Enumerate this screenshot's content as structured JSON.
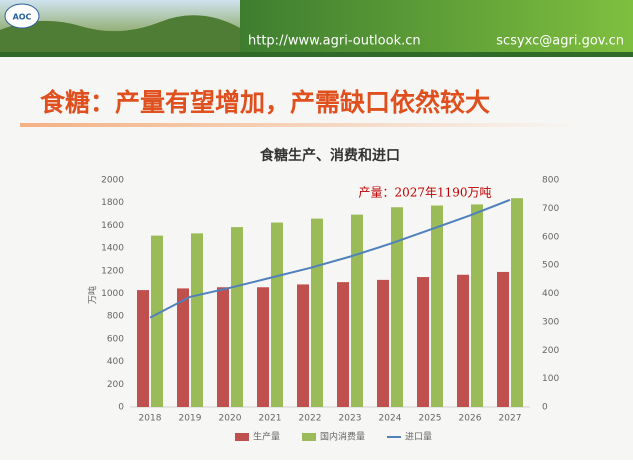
{
  "header": {
    "logo": "AOC",
    "url": "http://www.agri-outlook.cn",
    "email": "scsyxc@agri.gov.cn"
  },
  "slide_title": "食糖：产量有望增加，产需缺口依然较大",
  "chart_data": {
    "type": "bar",
    "title": "食糖生产、消费和进口",
    "annotation": "产量：2027年1190万吨",
    "y_label": "万吨",
    "categories": [
      "2018",
      "2019",
      "2020",
      "2021",
      "2022",
      "2023",
      "2024",
      "2025",
      "2026",
      "2027"
    ],
    "series": [
      {
        "name": "生产量",
        "type": "bar",
        "color": "#c0504d",
        "values": [
          1030,
          1045,
          1055,
          1055,
          1080,
          1100,
          1120,
          1145,
          1165,
          1190
        ]
      },
      {
        "name": "国内消费量",
        "type": "bar",
        "color": "#9bbb59",
        "values": [
          1510,
          1530,
          1585,
          1625,
          1660,
          1695,
          1760,
          1775,
          1785,
          1840
        ]
      },
      {
        "name": "进口量",
        "type": "line",
        "axis": "y2",
        "color": "#4f81bd",
        "values": [
          315,
          388,
          420,
          455,
          490,
          530,
          575,
          625,
          675,
          730
        ]
      }
    ],
    "ylim": [
      0,
      2000
    ],
    "yticks": [
      0,
      200,
      400,
      600,
      800,
      1000,
      1200,
      1400,
      1600,
      1800,
      2000
    ],
    "y2lim": [
      0,
      800
    ],
    "y2ticks": [
      0,
      100,
      200,
      300,
      400,
      500,
      600,
      700,
      800
    ]
  }
}
